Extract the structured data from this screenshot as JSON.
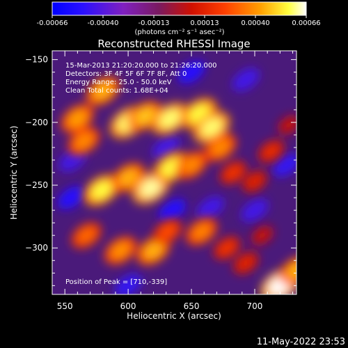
{
  "chart_data": {
    "type": "heatmap",
    "title": "Reconstructed RHESSI Image",
    "xlabel": "Heliocentric X (arcsec)",
    "ylabel": "Heliocentric Y (arcsec)",
    "xlim": [
      540,
      733
    ],
    "ylim": [
      -337,
      -143
    ],
    "xticks": [
      550,
      600,
      650,
      700
    ],
    "yticks": [
      -150,
      -200,
      -250,
      -300
    ],
    "colorbar": {
      "min": -0.00066,
      "max": 0.00066,
      "tick_labels": [
        "-0.00066",
        "-0.00040",
        "-0.00013",
        "0.00013",
        "0.00040",
        "0.00066"
      ],
      "label": "(photons cm⁻² s⁻¹ asec⁻²)",
      "colormap": [
        "#000000",
        "#1010ff",
        "#6020ff",
        "#4a1a7a",
        "#c01000",
        "#ff5000",
        "#ffa000",
        "#ffff40",
        "#ffffff"
      ]
    },
    "annotations": [
      "15-Mar-2013 21:20:20.000 to 21:26:20.000",
      "Detectors: 3F 4F 5F 6F 7F 8F, Att 0",
      "Energy Range: 25.0 - 50.0 keV",
      "Clean     Total counts: 1.68E+04"
    ],
    "peak_label": "Position of Peak = [710,-339]",
    "peak": [
      710,
      -339
    ],
    "blobs": [
      {
        "x": 560,
        "y": -197,
        "value": 0.00048
      },
      {
        "x": 580,
        "y": -175,
        "value": 0.0005
      },
      {
        "x": 565,
        "y": -215,
        "value": 0.00045
      },
      {
        "x": 600,
        "y": -200,
        "value": 0.0006
      },
      {
        "x": 613,
        "y": -195,
        "value": 0.00052
      },
      {
        "x": 633,
        "y": -197,
        "value": 0.0006
      },
      {
        "x": 656,
        "y": -193,
        "value": 0.00058
      },
      {
        "x": 666,
        "y": -204,
        "value": 0.0006
      },
      {
        "x": 673,
        "y": -220,
        "value": 0.00045
      },
      {
        "x": 579,
        "y": -254,
        "value": 0.00058
      },
      {
        "x": 600,
        "y": -244,
        "value": 0.0005
      },
      {
        "x": 618,
        "y": -252,
        "value": 0.00062
      },
      {
        "x": 634,
        "y": -236,
        "value": 0.00058
      },
      {
        "x": 650,
        "y": -234,
        "value": 0.00045
      },
      {
        "x": 683,
        "y": -240,
        "value": 0.0003
      },
      {
        "x": 700,
        "y": -247,
        "value": 0.00025
      },
      {
        "x": 567,
        "y": -290,
        "value": 0.0004
      },
      {
        "x": 594,
        "y": -302,
        "value": 0.00046
      },
      {
        "x": 620,
        "y": -302,
        "value": 0.0005
      },
      {
        "x": 631,
        "y": -287,
        "value": 0.00036
      },
      {
        "x": 658,
        "y": -287,
        "value": 0.00044
      },
      {
        "x": 678,
        "y": -300,
        "value": 0.0003
      },
      {
        "x": 693,
        "y": -312,
        "value": 0.00026
      },
      {
        "x": 706,
        "y": -290,
        "value": 0.00018
      },
      {
        "x": 713,
        "y": -223,
        "value": 0.00028
      },
      {
        "x": 727,
        "y": -202,
        "value": 0.00018
      },
      {
        "x": 720,
        "y": -330,
        "value": 0.00066
      },
      {
        "x": 733,
        "y": -318,
        "value": 0.0005
      }
    ],
    "negative_regions": [
      {
        "x": 555,
        "y": -260,
        "value": -0.0004
      },
      {
        "x": 556,
        "y": -230,
        "value": -0.0003
      },
      {
        "x": 600,
        "y": -330,
        "value": -0.00035
      },
      {
        "x": 630,
        "y": -220,
        "value": -0.0003
      },
      {
        "x": 635,
        "y": -270,
        "value": -0.0004
      },
      {
        "x": 665,
        "y": -268,
        "value": -0.0003
      },
      {
        "x": 700,
        "y": -270,
        "value": -0.0003
      },
      {
        "x": 693,
        "y": -166,
        "value": -0.0003
      },
      {
        "x": 725,
        "y": -234,
        "value": -0.00035
      },
      {
        "x": 650,
        "y": -160,
        "value": -0.0004
      }
    ]
  },
  "timestamp": "11-May-2022 23:53"
}
